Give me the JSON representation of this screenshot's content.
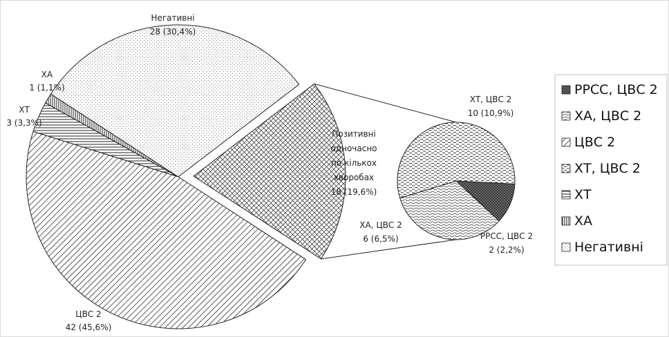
{
  "chart_data": {
    "type": "pie",
    "main": {
      "slices": [
        {
          "key": "cvs2",
          "name": "ЦВС 2",
          "value": 42,
          "percent": "45,6%"
        },
        {
          "key": "xt",
          "name": "ХТ",
          "value": 3,
          "percent": "3,3%"
        },
        {
          "key": "xa",
          "name": "ХА",
          "value": 1,
          "percent": "1,1%"
        },
        {
          "key": "neg",
          "name": "Негативні",
          "value": 28,
          "percent": "30,4%"
        },
        {
          "key": "multi",
          "name": "Позитивні одночасно по кількох хворобах",
          "value": 18,
          "percent": "19,6%"
        }
      ]
    },
    "sub": {
      "slices": [
        {
          "key": "xt_cvs2",
          "name": "ХТ, ЦВС 2",
          "value": 10,
          "percent": "10,9%"
        },
        {
          "key": "xa_cvs2",
          "name": "ХА, ЦВС 2",
          "value": 6,
          "percent": "6,5%"
        },
        {
          "key": "rrss_cvs2",
          "name": "РРСС, ЦВС 2",
          "value": 2,
          "percent": "2,2%"
        }
      ]
    },
    "legend": {
      "position": "right",
      "entries": [
        {
          "label": "РРСС,  ЦВС 2",
          "pattern": "rrss_cvs2"
        },
        {
          "label": "ХА,  ЦВС 2",
          "pattern": "xa_cvs2"
        },
        {
          "label": "ЦВС 2",
          "pattern": "cvs2"
        },
        {
          "label": "ХТ,  ЦВС 2",
          "pattern": "xt_cvs2"
        },
        {
          "label": "ХТ",
          "pattern": "xt"
        },
        {
          "label": "ХА",
          "pattern": "xa"
        },
        {
          "label": "Негативні",
          "pattern": "neg"
        }
      ]
    }
  },
  "labels": {
    "neg": {
      "line1": "Негативні",
      "line2": "28 (30,4%)"
    },
    "xa": {
      "line1": "ХА",
      "line2": "1 (1,1%)"
    },
    "xt": {
      "line1": "ХТ",
      "line2": "3 (3,3%)"
    },
    "cvs2": {
      "line1": "ЦВС 2",
      "line2": "42 (45,6%)"
    },
    "multi": {
      "line1": "Позитивні",
      "line2": "одночасно",
      "line3": "по кількох",
      "line4": "хворобах",
      "line5": "18 (19,6%)"
    },
    "xt_cvs2": {
      "line1": "ХТ,  ЦВС 2",
      "line2": "10 (10,9%)"
    },
    "xa_cvs2": {
      "line1": "ХА,  ЦВС 2",
      "line2": "6 (6,5%)"
    },
    "rrss_cvs2": {
      "line1": "РРСС,  ЦВС 2",
      "line2": "2 (2,2%)"
    }
  },
  "colors": {
    "stroke": "#222222",
    "background": "#ffffff",
    "frame": "#d9d9d9"
  }
}
